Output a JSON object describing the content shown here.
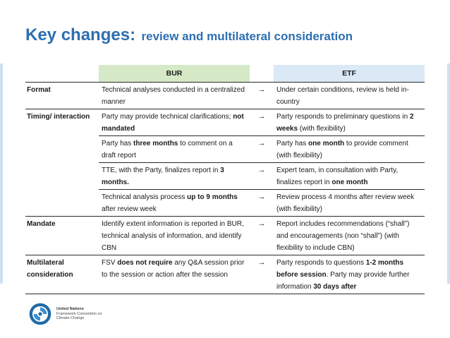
{
  "title": {
    "main": "Key changes:",
    "sub": "review and multilateral consideration"
  },
  "table": {
    "header": {
      "bur": "BUR",
      "etf": "ETF"
    },
    "arrow": "→",
    "rows": [
      {
        "label": "Format",
        "bur": [
          {
            "t": "Technical analyses conducted in a centralized manner"
          }
        ],
        "etf": [
          {
            "t": "Under certain conditions, review is held in-country"
          }
        ]
      },
      {
        "label": "Timing/ interaction",
        "bur": [
          {
            "t": "Party may provide technical clarifications; "
          },
          {
            "t": "not mandated",
            "b": true
          }
        ],
        "etf": [
          {
            "t": "Party responds to preliminary questions in "
          },
          {
            "t": "2 weeks",
            "b": true
          },
          {
            "t": " (with flexibility)"
          }
        ]
      },
      {
        "label": "",
        "bur": [
          {
            "t": "Party has "
          },
          {
            "t": "three months",
            "b": true
          },
          {
            "t": " to comment on a draft report"
          }
        ],
        "etf": [
          {
            "t": "Party has "
          },
          {
            "t": "one month",
            "b": true
          },
          {
            "t": " to provide comment (with flexibility)"
          }
        ]
      },
      {
        "label": "",
        "bur": [
          {
            "t": "TTE, with the Party, finalizes report in "
          },
          {
            "t": "3 months.",
            "b": true
          }
        ],
        "etf": [
          {
            "t": "Expert team, in consultation with Party, finalizes report in "
          },
          {
            "t": "one month",
            "b": true
          }
        ]
      },
      {
        "label": "",
        "bur": [
          {
            "t": "Technical analysis process "
          },
          {
            "t": "up to 9 months",
            "b": true
          },
          {
            "t": " after review week"
          }
        ],
        "etf": [
          {
            "t": "Review process 4 months after review week (with flexibility)"
          }
        ]
      },
      {
        "label": "Mandate",
        "bur": [
          {
            "t": "Identify extent information is reported in BUR, technical analysis of information, and identify CBN"
          }
        ],
        "etf": [
          {
            "t": "Report includes recommendations (“shall”) and encouragements (non “shall”) (with flexibility to include CBN)"
          }
        ]
      },
      {
        "label": "Multilateral consideration",
        "bur": [
          {
            "t": "FSV "
          },
          {
            "t": "does not require",
            "b": true
          },
          {
            "t": " any Q&A session prior to the session or action after the session"
          }
        ],
        "etf": [
          {
            "t": "Party responds to questions "
          },
          {
            "t": "1-2 months before session",
            "b": true
          },
          {
            "t": ". Party may provide further information "
          },
          {
            "t": "30 days after",
            "b": true
          }
        ]
      }
    ]
  },
  "logo": {
    "icon": "unfccc-globe-icon",
    "org": "United Nations",
    "line2": "Framework Convention on",
    "line3": "Climate Change"
  },
  "colors": {
    "title": "#2d6fb0",
    "bur_header": "#d6e9c6",
    "etf_header": "#dbe8f5"
  }
}
